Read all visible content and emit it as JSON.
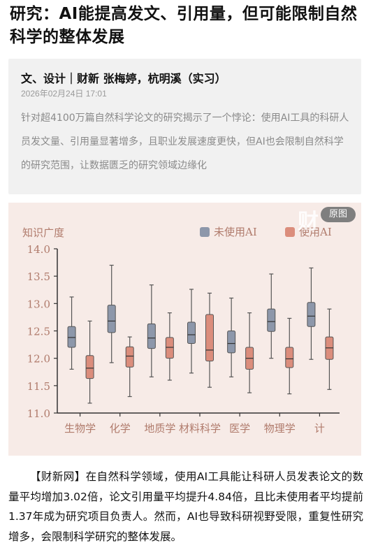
{
  "headline": "研究：AI能提高发文、引用量，但可能限制自然科学的整体发展",
  "byline": "文、设计｜财新 张梅婷，杭明溪（实习）",
  "timestamp": "2026年02月24日 17:01",
  "abstract": "针对超4100万篇自然科学论文的研究揭示了一个悖论：使用AI工具的科研人员发文量、引用量显著增多，且职业发展速度更快，但AI也会限制自然科学的研究范围，让数据匮乏的研究领域边缘化",
  "original_button": "原图",
  "body_text": "【财新网】在自然科学领域，使用AI工具能让科研人员发表论文的数量平均增加3.02倍，论文引用量平均提升4.84倍，且比未使用者平均提前1.37年成为研究项目负责人。然而，AI也导致科研视野受限，重复性研究增多，会限制科学研究的整体发展。",
  "watermark": "财",
  "chart_data": {
    "type": "boxplot",
    "ylabel": "知识广度",
    "ylim": [
      11.0,
      14.0
    ],
    "yticks": [
      "14.0",
      "13.5",
      "13.0",
      "12.5",
      "12.0",
      "11.5",
      "11.0"
    ],
    "categories": [
      "生物学",
      "化学",
      "地质学",
      "材料科学",
      "医学",
      "物理学",
      "计"
    ],
    "legend_position": "top-right",
    "series": [
      {
        "name": "未使用AI",
        "color": "#8d97aa",
        "boxes": [
          {
            "min": 11.8,
            "q1": 12.2,
            "median": 12.38,
            "q3": 12.58,
            "max": 13.12
          },
          {
            "min": 11.92,
            "q1": 12.47,
            "median": 12.68,
            "q3": 12.97,
            "max": 13.7
          },
          {
            "min": 11.66,
            "q1": 12.18,
            "median": 12.37,
            "q3": 12.63,
            "max": 13.34
          },
          {
            "min": 11.73,
            "q1": 12.27,
            "median": 12.43,
            "q3": 12.66,
            "max": 13.26
          },
          {
            "min": 11.66,
            "q1": 12.1,
            "median": 12.27,
            "q3": 12.5,
            "max": 13.1
          },
          {
            "min": 12.0,
            "q1": 12.49,
            "median": 12.67,
            "q3": 12.9,
            "max": 13.54
          },
          {
            "min": 11.98,
            "q1": 12.58,
            "median": 12.77,
            "q3": 13.02,
            "max": 13.65
          }
        ]
      },
      {
        "name": "使用AI",
        "color": "#db8d7c",
        "boxes": [
          {
            "min": 11.18,
            "q1": 11.63,
            "median": 11.82,
            "q3": 12.05,
            "max": 12.68
          },
          {
            "min": 11.3,
            "q1": 11.84,
            "median": 12.04,
            "q3": 12.21,
            "max": 12.39
          },
          {
            "min": 11.6,
            "q1": 12.0,
            "median": 12.2,
            "q3": 12.38,
            "max": 12.83
          },
          {
            "min": 11.47,
            "q1": 11.95,
            "median": 12.15,
            "q3": 12.8,
            "max": 13.19
          },
          {
            "min": 11.37,
            "q1": 11.8,
            "median": 12.0,
            "q3": 12.2,
            "max": 12.83
          },
          {
            "min": 11.35,
            "q1": 11.83,
            "median": 11.99,
            "q3": 12.2,
            "max": 12.73
          },
          {
            "min": 11.43,
            "q1": 11.98,
            "median": 12.19,
            "q3": 12.39,
            "max": 12.9
          }
        ]
      }
    ]
  }
}
